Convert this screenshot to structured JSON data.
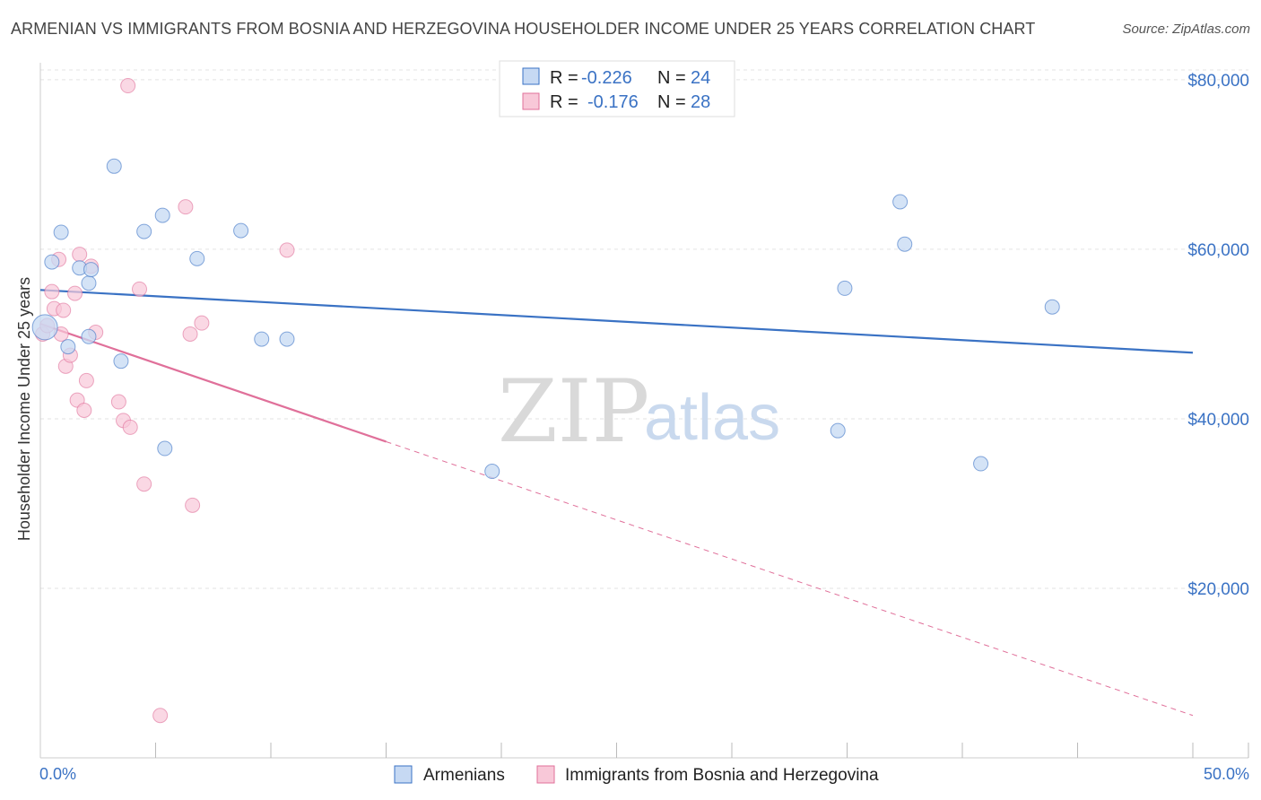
{
  "title": "ARMENIAN VS IMMIGRANTS FROM BOSNIA AND HERZEGOVINA HOUSEHOLDER INCOME UNDER 25 YEARS CORRELATION CHART",
  "source": "Source: ZipAtlas.com",
  "watermark": {
    "zip": "ZIP",
    "atlas": "atlas"
  },
  "legend": {
    "rows": [
      {
        "r_label": "R =",
        "r_value": "-0.226",
        "n_label": "N =",
        "n_value": "24"
      },
      {
        "r_label": "R =",
        "r_value": "-0.176",
        "n_label": "N =",
        "n_value": "28"
      }
    ]
  },
  "colors": {
    "blue": "#3a72c4",
    "blue_fill": "#c6d9f3",
    "pink": "#e0709a",
    "pink_fill": "#f8c8d8"
  },
  "chart_data": {
    "type": "scatter",
    "title": "ARMENIAN VS IMMIGRANTS FROM BOSNIA AND HERZEGOVINA HOUSEHOLDER INCOME UNDER 25 YEARS CORRELATION CHART",
    "xlabel": "",
    "ylabel": "Householder Income Under 25 years",
    "xlim": [
      0,
      50
    ],
    "ylim": [
      0,
      82000
    ],
    "x_tick_labels": [
      "0.0%",
      "50.0%"
    ],
    "y_ticks": [
      20000,
      40000,
      60000,
      80000
    ],
    "y_tick_labels": [
      "$20,000",
      "$40,000",
      "$60,000",
      "$80,000"
    ],
    "series": [
      {
        "name": "Armenians",
        "color": "#3a72c4",
        "points": [
          [
            0.2,
            50800
          ],
          [
            0.5,
            58500
          ],
          [
            0.9,
            62000
          ],
          [
            1.2,
            48500
          ],
          [
            1.7,
            57800
          ],
          [
            2.1,
            56000
          ],
          [
            2.2,
            57600
          ],
          [
            2.1,
            49700
          ],
          [
            3.2,
            69800
          ],
          [
            3.5,
            46800
          ],
          [
            4.5,
            62100
          ],
          [
            5.3,
            64000
          ],
          [
            5.4,
            36500
          ],
          [
            6.8,
            58900
          ],
          [
            8.7,
            62200
          ],
          [
            9.6,
            49400
          ],
          [
            10.7,
            49400
          ],
          [
            19.6,
            33800
          ],
          [
            34.6,
            38600
          ],
          [
            34.9,
            55400
          ],
          [
            37.3,
            65600
          ],
          [
            37.5,
            60600
          ],
          [
            40.8,
            34700
          ],
          [
            43.9,
            53200
          ]
        ],
        "trend": {
          "x": [
            0,
            50
          ],
          "y": [
            55200,
            47800
          ]
        }
      },
      {
        "name": "Immigrants from Bosnia and Herzegovina",
        "color": "#e0709a",
        "points": [
          [
            0.1,
            50000
          ],
          [
            0.3,
            51000
          ],
          [
            0.5,
            55000
          ],
          [
            0.6,
            53000
          ],
          [
            0.8,
            58800
          ],
          [
            0.9,
            50000
          ],
          [
            1.0,
            52800
          ],
          [
            1.1,
            46200
          ],
          [
            1.3,
            47500
          ],
          [
            1.5,
            54800
          ],
          [
            1.6,
            42200
          ],
          [
            1.7,
            59400
          ],
          [
            1.9,
            41000
          ],
          [
            2.0,
            44500
          ],
          [
            2.2,
            58000
          ],
          [
            2.4,
            50200
          ],
          [
            3.4,
            42000
          ],
          [
            3.6,
            39800
          ],
          [
            3.9,
            39000
          ],
          [
            3.8,
            79300
          ],
          [
            4.3,
            55300
          ],
          [
            4.5,
            32300
          ],
          [
            5.2,
            5000
          ],
          [
            6.3,
            65000
          ],
          [
            6.5,
            50000
          ],
          [
            6.6,
            29800
          ],
          [
            7.0,
            51300
          ],
          [
            10.7,
            59900
          ]
        ],
        "trend": {
          "x": [
            0,
            15
          ],
          "y": [
            51200,
            37300
          ]
        },
        "trend_extended": {
          "x": [
            15,
            50
          ],
          "y": [
            37300,
            5000
          ]
        }
      }
    ]
  },
  "bottom_legend": [
    "Armenians",
    "Immigrants from Bosnia and Herzegovina"
  ]
}
